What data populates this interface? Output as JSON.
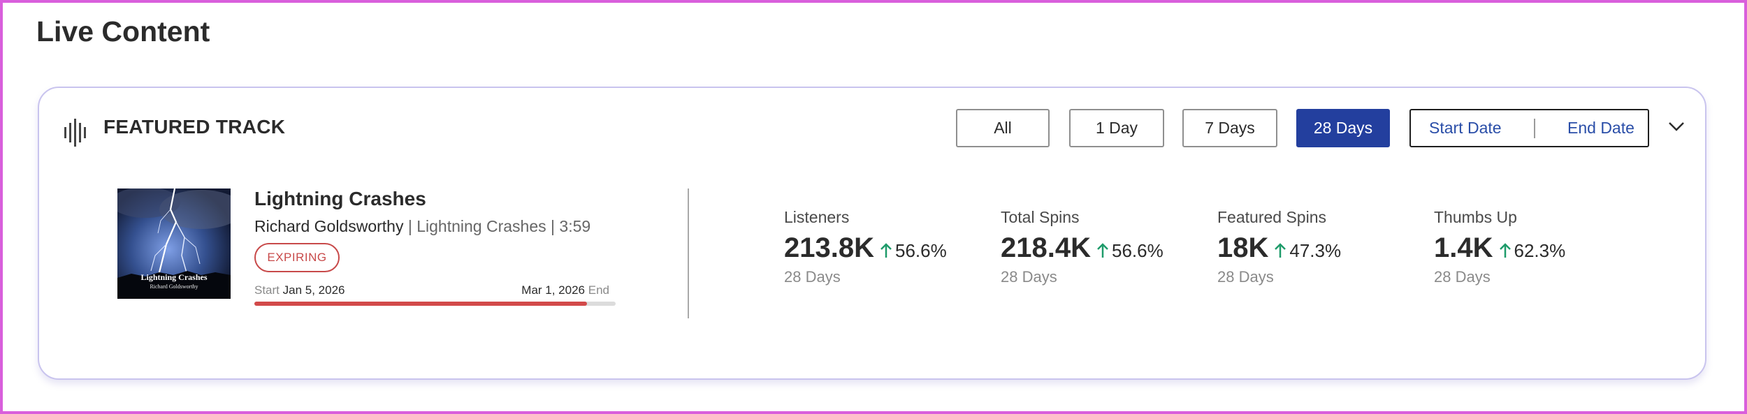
{
  "page": {
    "title": "Live Content"
  },
  "card": {
    "title": "FEATURED TRACK",
    "icon": "audio-wave-icon",
    "filters": [
      {
        "label": "All",
        "active": false
      },
      {
        "label": "1 Day",
        "active": false
      },
      {
        "label": "7 Days",
        "active": false
      },
      {
        "label": "28 Days",
        "active": true
      }
    ],
    "date_range": {
      "start_placeholder": "Start Date",
      "end_placeholder": "End Date"
    },
    "collapse_icon": "chevron-down-icon"
  },
  "track": {
    "title": "Lightning Crashes",
    "artist": "Richard Goldsworthy",
    "album": "Lightning Crashes",
    "duration": "3:59",
    "album_art_title": "Lightning Crashes",
    "album_art_artist": "Richard Goldsworthy",
    "badge": "EXPIRING",
    "start_label": "Start",
    "start_date": "Jan 5, 2026",
    "end_label": "End",
    "end_date": "Mar 1, 2026",
    "progress_percent": 92
  },
  "stats": [
    {
      "label": "Listeners",
      "value": "213.8K",
      "change": "56.6%",
      "period": "28 Days"
    },
    {
      "label": "Total Spins",
      "value": "218.4K",
      "change": "56.6%",
      "period": "28 Days"
    },
    {
      "label": "Featured Spins",
      "value": "18K",
      "change": "47.3%",
      "period": "28 Days"
    },
    {
      "label": "Thumbs Up",
      "value": "1.4K",
      "change": "62.3%",
      "period": "28 Days"
    }
  ],
  "colors": {
    "accent": "#233f9e",
    "badge": "#c84a4a",
    "positive": "#1e9b6a",
    "frame": "#d95fdc"
  }
}
